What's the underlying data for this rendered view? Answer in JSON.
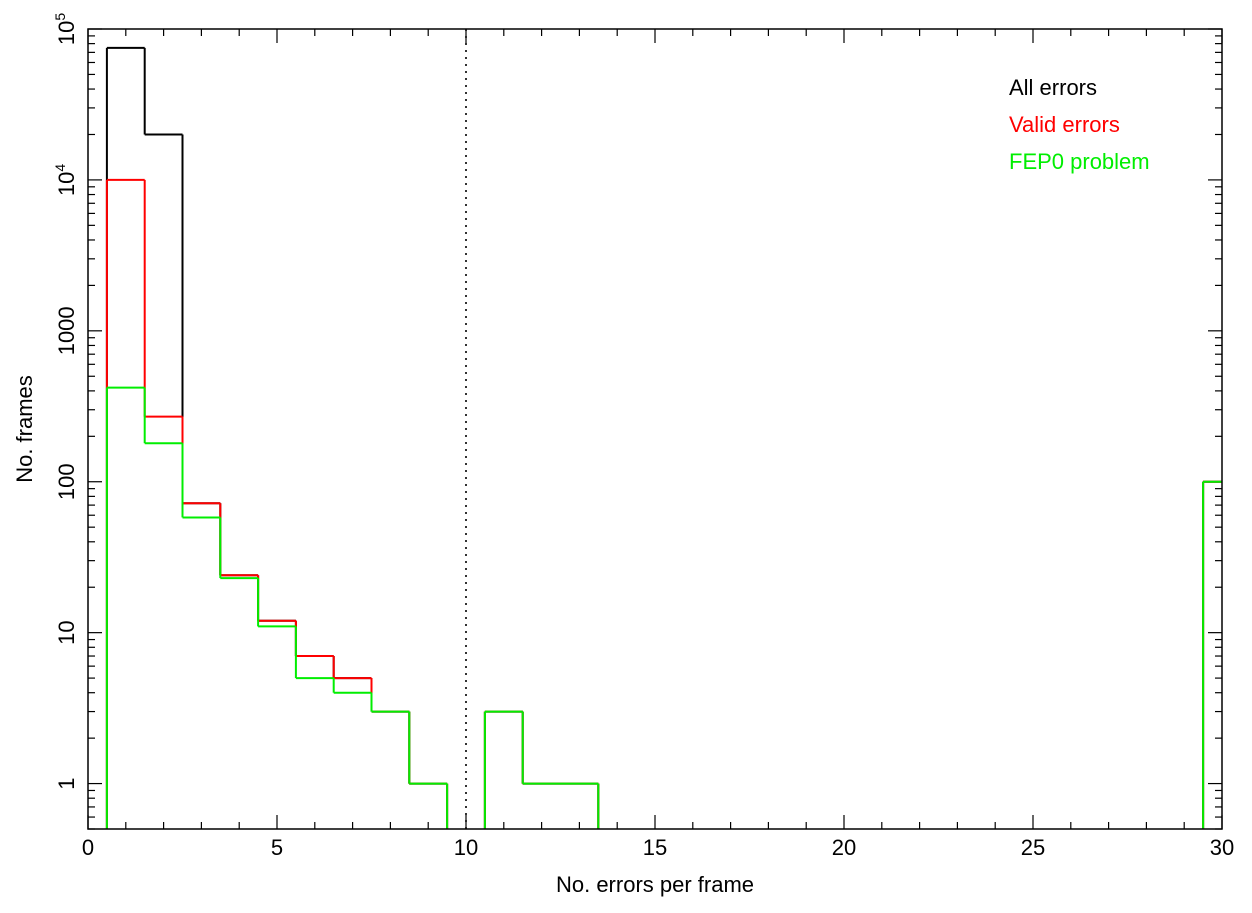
{
  "chart_data": {
    "type": "line",
    "step": true,
    "xlabel": "No. errors per frame",
    "ylabel": "No. frames",
    "xlim": [
      0,
      30
    ],
    "ylim": [
      0.5,
      100000
    ],
    "y_scale": "log",
    "x_ticks": [
      0,
      5,
      10,
      15,
      20,
      25,
      30
    ],
    "x_tick_labels": [
      "0",
      "5",
      "10",
      "15",
      "20",
      "25",
      "30"
    ],
    "y_ticks": [
      1,
      10,
      100,
      1000,
      10000,
      100000
    ],
    "y_tick_labels": [
      {
        "base": "1",
        "exp": ""
      },
      {
        "base": "10",
        "exp": ""
      },
      {
        "base": "100",
        "exp": ""
      },
      {
        "base": "1000",
        "exp": ""
      },
      {
        "base": "10",
        "exp": "4"
      },
      {
        "base": "10",
        "exp": "5"
      }
    ],
    "reference_line": {
      "x": 10,
      "style": "dotted"
    },
    "legend_position": "top-right",
    "series": [
      {
        "name": "All errors",
        "color": "#000000",
        "x": [
          1,
          2,
          3,
          4,
          5,
          6,
          7,
          8,
          9,
          10,
          11,
          12,
          13,
          14,
          30
        ],
        "values": [
          75000,
          20000,
          72,
          24,
          12,
          7,
          5,
          3,
          1,
          0,
          3,
          1,
          1,
          0,
          100
        ]
      },
      {
        "name": "Valid errors",
        "color": "#ff0000",
        "x": [
          1,
          2,
          3,
          4,
          5,
          6,
          7,
          8,
          9,
          10,
          11,
          12,
          13,
          14,
          30
        ],
        "values": [
          10000,
          270,
          72,
          24,
          12,
          7,
          5,
          3,
          1,
          0,
          3,
          1,
          1,
          0,
          100
        ]
      },
      {
        "name": "FEP0 problem",
        "color": "#00ee00",
        "x": [
          1,
          2,
          3,
          4,
          5,
          6,
          7,
          8,
          9,
          10,
          11,
          12,
          13,
          14,
          30
        ],
        "values": [
          420,
          180,
          58,
          23,
          11,
          5,
          4,
          3,
          1,
          0,
          3,
          1,
          1,
          0,
          100
        ]
      }
    ]
  }
}
